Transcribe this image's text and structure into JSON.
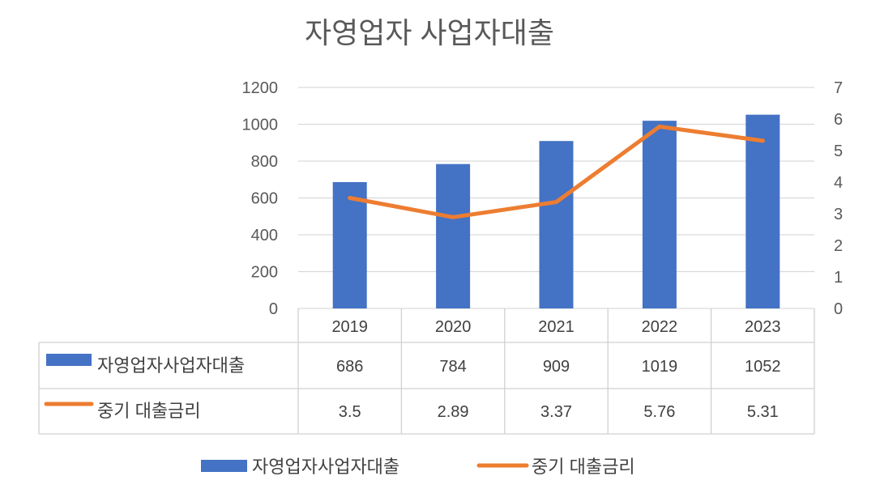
{
  "chart_data": {
    "type": "bar",
    "title": "자영업자 사업자대출",
    "categories": [
      "2019",
      "2020",
      "2021",
      "2022",
      "2023"
    ],
    "series": [
      {
        "name": "자영업자사업자대출",
        "type": "bar",
        "axis": "left",
        "color": "#4472c4",
        "values": [
          686,
          784,
          909,
          1019,
          1052
        ]
      },
      {
        "name": "중기 대출금리",
        "type": "line",
        "axis": "right",
        "color": "#ed7d31",
        "values": [
          3.5,
          2.89,
          3.37,
          5.76,
          5.31
        ]
      }
    ],
    "y_left": {
      "range": [
        0,
        1200
      ],
      "ticks": [
        0,
        200,
        400,
        600,
        800,
        1000,
        1200
      ]
    },
    "y_right": {
      "range": [
        0,
        7
      ],
      "ticks": [
        0,
        1,
        2,
        3,
        4,
        5,
        6,
        7
      ]
    },
    "grid": true,
    "data_table": true,
    "legend": {
      "position": "bottom"
    }
  }
}
